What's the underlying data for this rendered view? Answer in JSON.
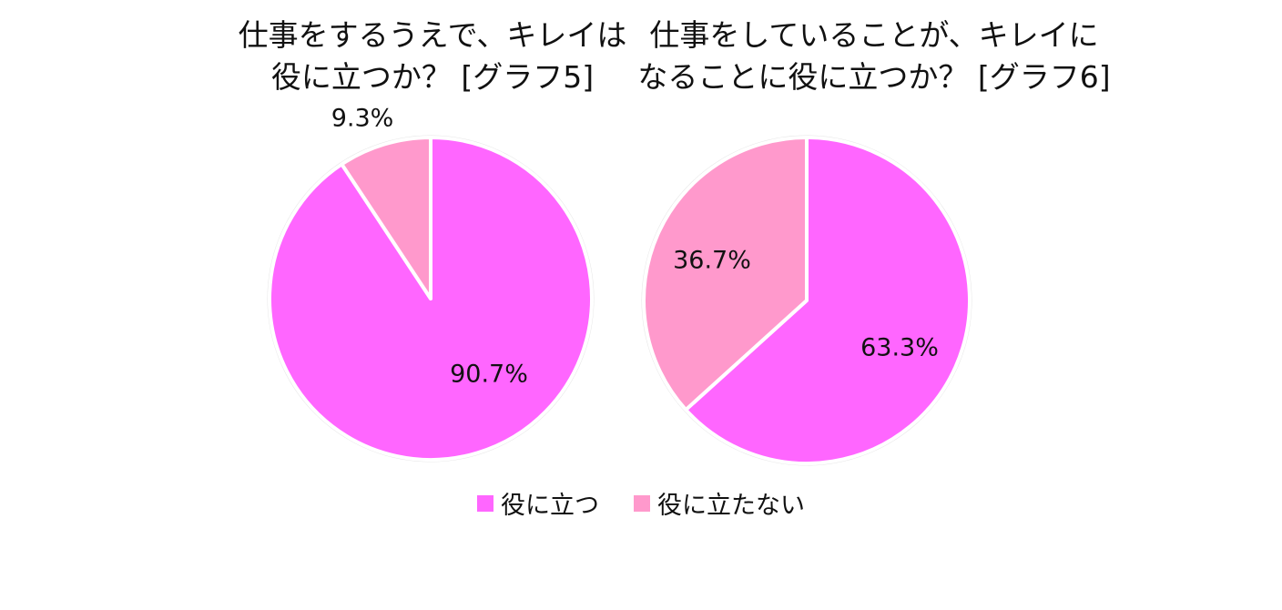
{
  "chart_data": [
    {
      "type": "pie",
      "title_lines": [
        "仕事をするうえで、キレイは",
        "役に立つか？ [グラフ5]"
      ],
      "categories": [
        "役に立つ",
        "役に立たない"
      ],
      "values": [
        90.7,
        9.3
      ],
      "labels": [
        "90.7%",
        "9.3%"
      ],
      "colors": [
        "#FF66FF",
        "#FF99CC"
      ]
    },
    {
      "type": "pie",
      "title_lines": [
        "仕事をしていることが、キレイに",
        "なることに役に立つか？ [グラフ6]"
      ],
      "categories": [
        "役に立つ",
        "役に立たない"
      ],
      "values": [
        63.3,
        36.7
      ],
      "labels": [
        "63.3%",
        "36.7%"
      ],
      "colors": [
        "#FF66FF",
        "#FF99CC"
      ]
    }
  ],
  "legend": {
    "placement": "bottom",
    "items": [
      {
        "label": "役に立つ",
        "color": "#FF66FF"
      },
      {
        "label": "役に立たない",
        "color": "#FF99CC"
      }
    ]
  }
}
